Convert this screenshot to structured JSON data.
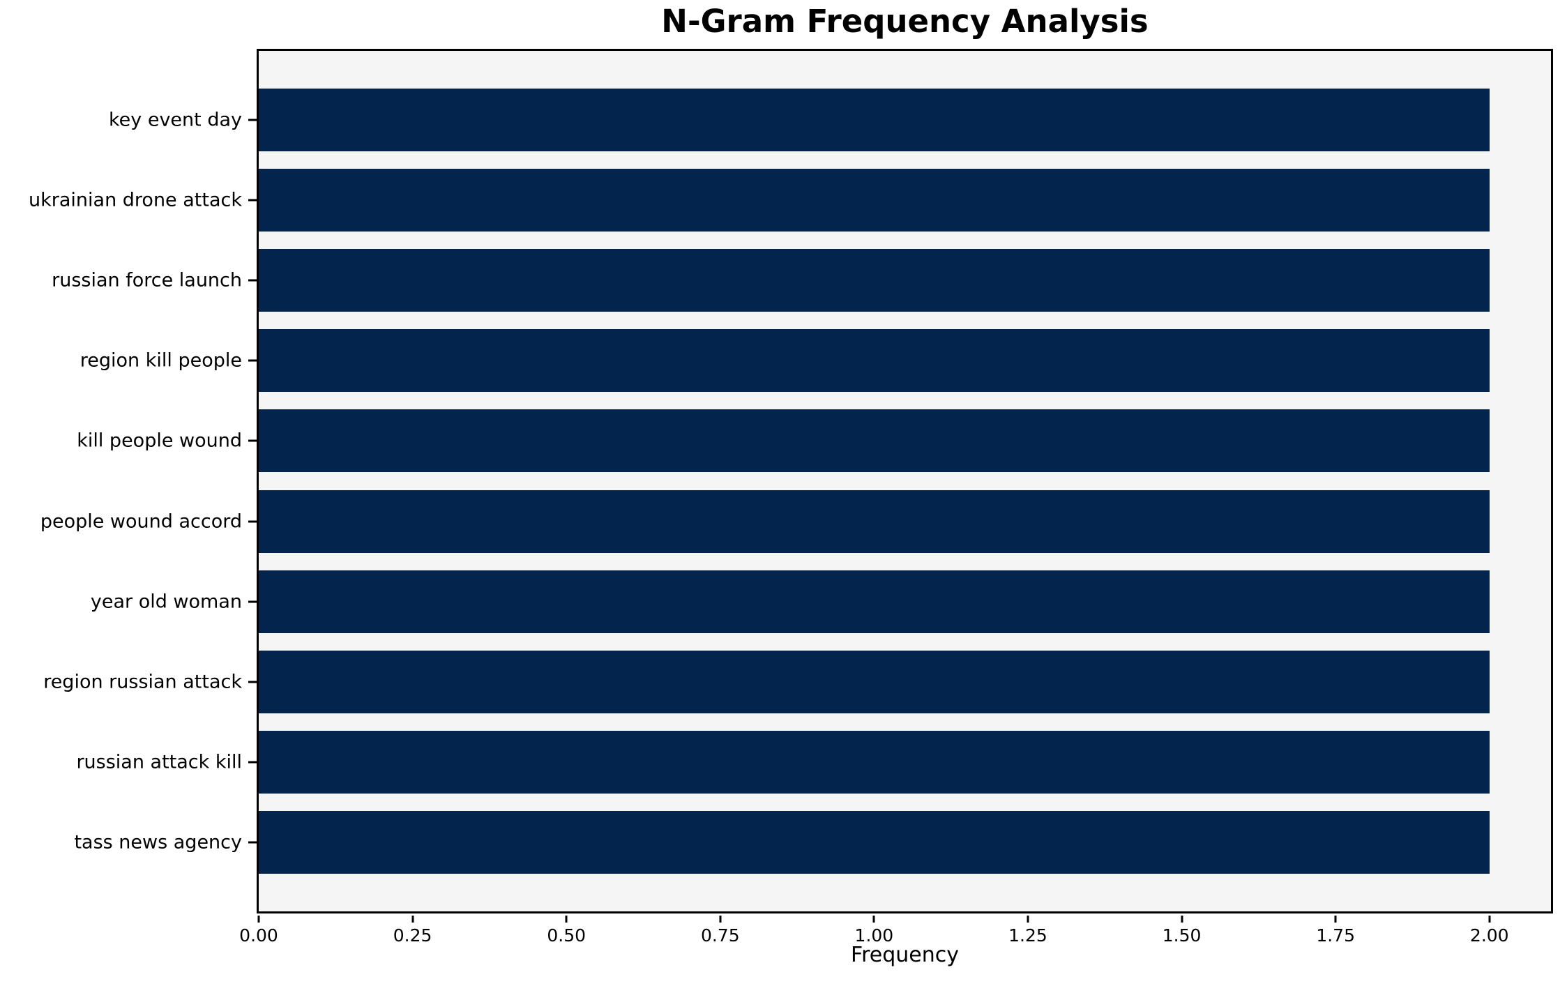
{
  "title": "N-Gram Frequency Analysis",
  "chart_data": {
    "type": "bar",
    "orientation": "horizontal",
    "title": "N-Gram Frequency Analysis",
    "xlabel": "Frequency",
    "ylabel": "",
    "categories": [
      "key event day",
      "ukrainian drone attack",
      "russian force launch",
      "region kill people",
      "kill people wound",
      "people wound accord",
      "year old woman",
      "region russian attack",
      "russian attack kill",
      "tass news agency"
    ],
    "values": [
      2,
      2,
      2,
      2,
      2,
      2,
      2,
      2,
      2,
      2
    ],
    "xlim": [
      0,
      2.1
    ],
    "xtick_values": [
      0,
      0.25,
      0.5,
      0.75,
      1.0,
      1.25,
      1.5,
      1.75,
      2.0
    ],
    "xtick_labels": [
      "0.00",
      "0.25",
      "0.50",
      "0.75",
      "1.00",
      "1.25",
      "1.50",
      "1.75",
      "2.00"
    ],
    "grid": false,
    "legend": null,
    "colors": {
      "bar": "#03254d",
      "plot_background": "#f5f5f5",
      "figure_background": "#ffffff",
      "axis": "#000000",
      "text": "#000000"
    }
  }
}
